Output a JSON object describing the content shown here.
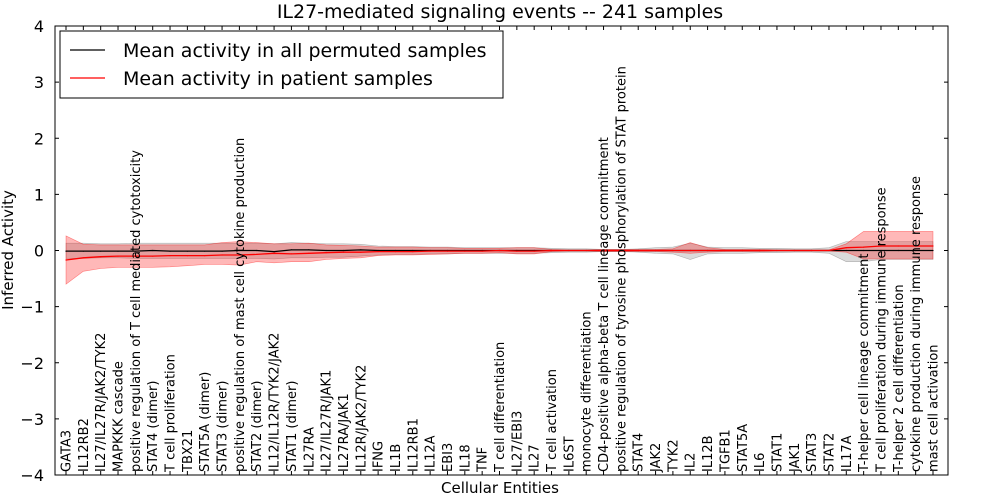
{
  "chart_data": {
    "type": "line",
    "title": "IL27-mediated signaling events -- 241 samples",
    "xlabel": "Cellular Entities",
    "ylabel": "Inferred Activity",
    "ylim": [
      -4,
      4
    ],
    "yticks": [
      -4,
      -3,
      -2,
      -1,
      0,
      1,
      2,
      3,
      4
    ],
    "ytick_labels": [
      "−4",
      "−3",
      "−2",
      "−1",
      "0",
      "1",
      "2",
      "3",
      "4"
    ],
    "grid": false,
    "legend_position": "top-left",
    "categories": [
      "GATA3",
      "IL12RB2",
      "IL27/IL27R/JAK2/TYK2",
      "MAPKKK cascade",
      "positive regulation of T cell mediated cytotoxicity",
      "STAT4 (dimer)",
      "T cell proliferation",
      "TBX21",
      "STAT5A (dimer)",
      "STAT3 (dimer)",
      "positive regulation of mast cell cytokine production",
      "STAT2 (dimer)",
      "IL12/IL12R/TYK2/JAK2",
      "STAT1 (dimer)",
      "IL27RA",
      "IL27/IL27R/JAK1",
      "IL27RA/JAK1",
      "IL12R/JAK2/TYK2",
      "IFNG",
      "IL1B",
      "IL12RB1",
      "IL12A",
      "EBI3",
      "IL18",
      "TNF",
      "T cell differentiation",
      "IL27/EBI3",
      "IL27",
      "T cell activation",
      "IL6ST",
      "monocyte differentiation",
      "CD4-positive alpha-beta T cell lineage commitment",
      "positive regulation of tyrosine phosphorylation of STAT protein",
      "STAT4",
      "JAK2",
      "TYK2",
      "IL2",
      "IL12B",
      "TGFB1",
      "STAT5A",
      "IL6",
      "STAT1",
      "JAK1",
      "STAT3",
      "STAT2",
      "IL17A",
      "T-helper cell lineage commitment",
      "T cell proliferation during immune response",
      "T-helper 2 cell differentiation",
      "cytokine production during immune response",
      "mast cell activation"
    ],
    "series": [
      {
        "name": "Mean activity in all permuted samples",
        "color": "#000000",
        "values": [
          -0.01,
          -0.01,
          -0.01,
          -0.01,
          -0.01,
          0.0,
          -0.01,
          -0.01,
          -0.01,
          -0.01,
          0.0,
          0.0,
          -0.02,
          0.01,
          0.01,
          0.0,
          0.0,
          0.01,
          0.0,
          0.0,
          0.0,
          0.0,
          0.0,
          0.0,
          0.0,
          0.0,
          0.0,
          0.0,
          0.0,
          0.0,
          0.0,
          0.0,
          0.0,
          0.0,
          0.0,
          0.0,
          0.0,
          0.0,
          0.0,
          0.0,
          0.0,
          0.0,
          0.0,
          0.0,
          0.0,
          0.0,
          0.0,
          0.0,
          0.0,
          0.0,
          0.0
        ],
        "lower": [
          -0.14,
          -0.14,
          -0.13,
          -0.13,
          -0.14,
          -0.14,
          -0.14,
          -0.14,
          -0.14,
          -0.14,
          -0.14,
          -0.14,
          -0.15,
          -0.13,
          -0.13,
          -0.12,
          -0.12,
          -0.1,
          -0.08,
          -0.07,
          -0.07,
          -0.06,
          -0.06,
          -0.05,
          -0.05,
          -0.05,
          -0.05,
          -0.05,
          -0.04,
          -0.03,
          -0.03,
          -0.02,
          -0.02,
          -0.03,
          -0.05,
          -0.06,
          -0.16,
          -0.06,
          -0.05,
          -0.05,
          -0.04,
          -0.04,
          -0.03,
          -0.03,
          -0.05,
          -0.2,
          -0.2,
          -0.16,
          -0.16,
          -0.16,
          -0.16
        ],
        "upper": [
          0.13,
          0.13,
          0.12,
          0.12,
          0.13,
          0.13,
          0.13,
          0.13,
          0.13,
          0.13,
          0.13,
          0.13,
          0.12,
          0.14,
          0.13,
          0.12,
          0.12,
          0.11,
          0.08,
          0.07,
          0.07,
          0.06,
          0.06,
          0.05,
          0.05,
          0.05,
          0.05,
          0.05,
          0.04,
          0.03,
          0.03,
          0.02,
          0.02,
          0.03,
          0.05,
          0.06,
          0.13,
          0.06,
          0.05,
          0.05,
          0.04,
          0.04,
          0.03,
          0.03,
          0.05,
          0.16,
          0.16,
          0.16,
          0.16,
          0.16,
          0.16
        ]
      },
      {
        "name": "Mean activity in patient samples",
        "color": "#ff0000",
        "values": [
          -0.17,
          -0.13,
          -0.11,
          -0.1,
          -0.1,
          -0.1,
          -0.09,
          -0.09,
          -0.09,
          -0.08,
          -0.08,
          -0.07,
          -0.05,
          -0.06,
          -0.05,
          -0.04,
          -0.03,
          -0.03,
          -0.02,
          -0.02,
          -0.02,
          -0.01,
          -0.01,
          -0.01,
          -0.01,
          0.0,
          -0.01,
          -0.01,
          0.0,
          0.0,
          0.0,
          0.0,
          0.0,
          0.0,
          0.0,
          0.0,
          0.0,
          0.0,
          0.0,
          0.0,
          0.0,
          0.0,
          0.0,
          0.0,
          0.0,
          0.05,
          0.06,
          0.08,
          0.08,
          0.08,
          0.08
        ],
        "lower": [
          -0.6,
          -0.37,
          -0.32,
          -0.3,
          -0.3,
          -0.3,
          -0.29,
          -0.27,
          -0.25,
          -0.25,
          -0.26,
          -0.2,
          -0.22,
          -0.2,
          -0.2,
          -0.16,
          -0.14,
          -0.13,
          -0.09,
          -0.08,
          -0.08,
          -0.07,
          -0.06,
          -0.05,
          -0.05,
          -0.04,
          -0.06,
          -0.06,
          -0.02,
          -0.01,
          -0.01,
          -0.02,
          -0.02,
          -0.02,
          -0.02,
          -0.03,
          -0.05,
          -0.03,
          -0.02,
          -0.02,
          -0.02,
          -0.01,
          -0.01,
          -0.01,
          -0.01,
          -0.03,
          -0.15,
          -0.15,
          -0.15,
          -0.15,
          -0.15
        ],
        "upper": [
          0.26,
          0.11,
          0.1,
          0.1,
          0.1,
          0.1,
          0.1,
          0.1,
          0.1,
          0.14,
          0.16,
          0.14,
          0.12,
          0.12,
          0.13,
          0.1,
          0.09,
          0.08,
          0.06,
          0.06,
          0.06,
          0.05,
          0.05,
          0.04,
          0.04,
          0.04,
          0.05,
          0.05,
          0.02,
          0.01,
          0.01,
          0.02,
          0.02,
          0.02,
          0.02,
          0.03,
          0.14,
          0.05,
          0.02,
          0.02,
          0.02,
          0.01,
          0.01,
          0.01,
          0.01,
          0.12,
          0.34,
          0.34,
          0.34,
          0.34,
          0.34
        ]
      }
    ]
  }
}
